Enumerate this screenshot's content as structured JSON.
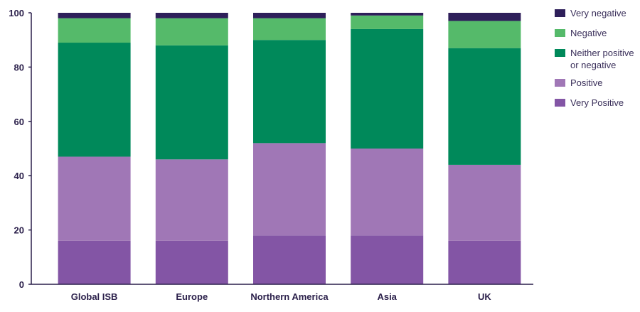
{
  "chart_data": {
    "type": "bar",
    "stacked": true,
    "categories": [
      "Global ISB",
      "Europe",
      "Northern America",
      "Asia",
      "UK"
    ],
    "series": [
      {
        "name": "Very Positive",
        "color": "#8355a5",
        "values": [
          16,
          16,
          18,
          18,
          16
        ]
      },
      {
        "name": "Positive",
        "color": "#a077b6",
        "values": [
          31,
          30,
          34,
          32,
          28
        ]
      },
      {
        "name": "Neither positive or negative",
        "legend_lines": [
          "Neither positive",
          "or negative"
        ],
        "color": "#00895a",
        "values": [
          42,
          42,
          38,
          44,
          43
        ]
      },
      {
        "name": "Negative",
        "color": "#55ba6a",
        "values": [
          9,
          10,
          8,
          5,
          10
        ]
      },
      {
        "name": "Very negative",
        "color": "#2e1f5a",
        "values": [
          2,
          2,
          2,
          1,
          3
        ]
      }
    ],
    "yticks": [
      0,
      20,
      40,
      60,
      80,
      100
    ],
    "ylim": [
      0,
      100
    ],
    "xlabel": "",
    "ylabel": "",
    "grid": false,
    "legend_position": "right"
  }
}
